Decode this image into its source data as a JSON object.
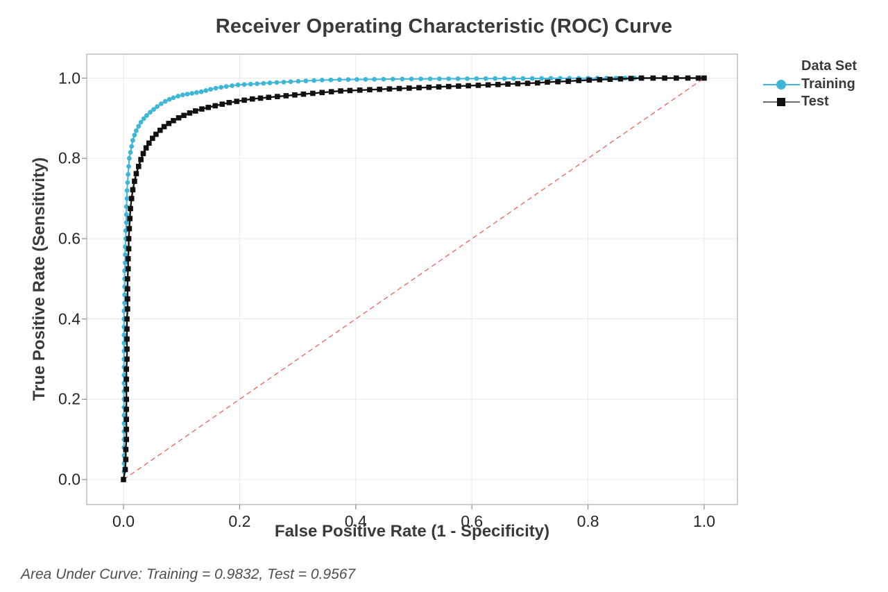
{
  "header": {
    "title": "Receiver Operating Characteristic (ROC) Curve"
  },
  "footer": {
    "text": "Area Under Curve: Training = 0.9832, Test = 0.9567"
  },
  "legend": {
    "title": "Data Set",
    "items": [
      {
        "label": "Training",
        "marker": "circle",
        "marker_color": "#3eb6d8",
        "line_color": "#3eb6d8"
      },
      {
        "label": "Test",
        "marker": "square",
        "marker_color": "#111111",
        "line_color": "#6a6a6a"
      }
    ]
  },
  "colors": {
    "grid": "#e9e9e9",
    "frame": "#bdbdbd",
    "tick": "#8c8c8c",
    "diagonal": "#ef5a52",
    "training": "#3eb6d8",
    "test": "#111111",
    "background": "#ffffff"
  },
  "chart_data": {
    "type": "line",
    "title": "Receiver Operating Characteristic (ROC) Curve",
    "xlabel": "False Positive Rate (1 - Specificity)",
    "ylabel": "True Positive Rate (Sensitivity)",
    "xlim": [
      0,
      1
    ],
    "ylim": [
      0,
      1
    ],
    "grid": true,
    "legend_position": "right",
    "x_ticks": [
      0,
      0.2,
      0.4,
      0.6,
      0.8,
      1.0
    ],
    "x_tick_labels": [
      "0.0",
      "0.2",
      "0.4",
      "0.6",
      "0.8",
      "1.0"
    ],
    "y_ticks": [
      0,
      0.2,
      0.4,
      0.6,
      0.8,
      1.0
    ],
    "y_tick_labels": [
      "0.0",
      "0.2",
      "0.4",
      "0.6",
      "0.8",
      "1.0"
    ],
    "reference_line": {
      "from": [
        0,
        0
      ],
      "to": [
        1,
        1
      ],
      "style": "dashed",
      "color": "#ef5a52"
    },
    "annotations": {
      "area_under_curve": {
        "Training": 0.9832,
        "Test": 0.9567
      }
    },
    "series": [
      {
        "name": "Training",
        "auc": 0.9832,
        "marker": "circle",
        "color": "#3eb6d8",
        "points": [
          [
            0.0,
            0.0
          ],
          [
            0.001,
            0.02
          ],
          [
            0.001,
            0.04
          ],
          [
            0.001,
            0.06
          ],
          [
            0.001,
            0.08
          ],
          [
            0.001,
            0.1
          ],
          [
            0.001,
            0.12
          ],
          [
            0.001,
            0.14
          ],
          [
            0.001,
            0.16
          ],
          [
            0.001,
            0.18
          ],
          [
            0.001,
            0.2
          ],
          [
            0.001,
            0.22
          ],
          [
            0.001,
            0.24
          ],
          [
            0.001,
            0.26
          ],
          [
            0.001,
            0.28
          ],
          [
            0.001,
            0.3
          ],
          [
            0.001,
            0.32
          ],
          [
            0.001,
            0.34
          ],
          [
            0.001,
            0.36
          ],
          [
            0.001,
            0.38
          ],
          [
            0.001,
            0.4
          ],
          [
            0.001,
            0.42
          ],
          [
            0.002,
            0.44
          ],
          [
            0.002,
            0.46
          ],
          [
            0.002,
            0.48
          ],
          [
            0.002,
            0.5
          ],
          [
            0.002,
            0.52
          ],
          [
            0.003,
            0.54
          ],
          [
            0.003,
            0.56
          ],
          [
            0.003,
            0.58
          ],
          [
            0.004,
            0.6
          ],
          [
            0.004,
            0.62
          ],
          [
            0.005,
            0.64
          ],
          [
            0.005,
            0.66
          ],
          [
            0.005,
            0.68
          ],
          [
            0.006,
            0.7
          ],
          [
            0.006,
            0.72
          ],
          [
            0.007,
            0.74
          ],
          [
            0.008,
            0.76
          ],
          [
            0.009,
            0.78
          ],
          [
            0.01,
            0.8
          ],
          [
            0.012,
            0.815
          ],
          [
            0.014,
            0.83
          ],
          [
            0.016,
            0.845
          ],
          [
            0.019,
            0.858
          ],
          [
            0.022,
            0.869
          ],
          [
            0.026,
            0.88
          ],
          [
            0.03,
            0.89
          ],
          [
            0.035,
            0.899
          ],
          [
            0.04,
            0.907
          ],
          [
            0.046,
            0.915
          ],
          [
            0.052,
            0.922
          ],
          [
            0.058,
            0.929
          ],
          [
            0.065,
            0.936
          ],
          [
            0.072,
            0.942
          ],
          [
            0.079,
            0.947
          ],
          [
            0.086,
            0.951
          ],
          [
            0.094,
            0.955
          ],
          [
            0.102,
            0.958
          ],
          [
            0.11,
            0.96
          ],
          [
            0.118,
            0.962
          ],
          [
            0.126,
            0.964
          ],
          [
            0.134,
            0.966
          ],
          [
            0.142,
            0.969
          ],
          [
            0.15,
            0.972
          ],
          [
            0.159,
            0.975
          ],
          [
            0.168,
            0.977
          ],
          [
            0.177,
            0.979
          ],
          [
            0.187,
            0.981
          ],
          [
            0.197,
            0.983
          ],
          [
            0.208,
            0.984
          ],
          [
            0.219,
            0.985
          ],
          [
            0.23,
            0.986
          ],
          [
            0.241,
            0.987
          ],
          [
            0.252,
            0.988
          ],
          [
            0.264,
            0.989
          ],
          [
            0.276,
            0.99
          ],
          [
            0.288,
            0.991
          ],
          [
            0.301,
            0.992
          ],
          [
            0.314,
            0.993
          ],
          [
            0.328,
            0.994
          ],
          [
            0.342,
            0.995
          ],
          [
            0.357,
            0.9955
          ],
          [
            0.372,
            0.996
          ],
          [
            0.387,
            0.9963
          ],
          [
            0.402,
            0.9966
          ],
          [
            0.417,
            0.9968
          ],
          [
            0.432,
            0.997
          ],
          [
            0.448,
            0.9972
          ],
          [
            0.464,
            0.9974
          ],
          [
            0.48,
            0.9976
          ],
          [
            0.496,
            0.9978
          ],
          [
            0.512,
            0.998
          ],
          [
            0.528,
            0.9981
          ],
          [
            0.544,
            0.9982
          ],
          [
            0.56,
            0.9983
          ],
          [
            0.576,
            0.9984
          ],
          [
            0.592,
            0.9985
          ],
          [
            0.608,
            0.9986
          ],
          [
            0.624,
            0.9987
          ],
          [
            0.64,
            0.9988
          ],
          [
            0.656,
            0.9989
          ],
          [
            0.672,
            0.999
          ],
          [
            0.688,
            0.999
          ],
          [
            0.704,
            0.9991
          ],
          [
            0.72,
            0.9992
          ],
          [
            0.736,
            0.9993
          ],
          [
            0.752,
            0.9994
          ],
          [
            0.768,
            0.9995
          ],
          [
            0.784,
            0.9996
          ],
          [
            0.8,
            0.9996
          ],
          [
            0.816,
            0.9997
          ],
          [
            0.832,
            0.9998
          ],
          [
            0.848,
            0.9998
          ],
          [
            0.864,
            0.9999
          ],
          [
            0.88,
            1.0
          ],
          [
            0.89,
            1.0
          ]
        ]
      },
      {
        "name": "Test",
        "auc": 0.9567,
        "marker": "square",
        "color": "#111111",
        "points": [
          [
            0.0,
            0.0
          ],
          [
            0.003,
            0.025
          ],
          [
            0.004,
            0.05
          ],
          [
            0.004,
            0.075
          ],
          [
            0.005,
            0.1
          ],
          [
            0.005,
            0.125
          ],
          [
            0.005,
            0.15
          ],
          [
            0.005,
            0.175
          ],
          [
            0.005,
            0.2
          ],
          [
            0.005,
            0.225
          ],
          [
            0.005,
            0.25
          ],
          [
            0.005,
            0.275
          ],
          [
            0.006,
            0.3
          ],
          [
            0.006,
            0.325
          ],
          [
            0.006,
            0.35
          ],
          [
            0.006,
            0.375
          ],
          [
            0.006,
            0.4
          ],
          [
            0.007,
            0.425
          ],
          [
            0.007,
            0.45
          ],
          [
            0.007,
            0.475
          ],
          [
            0.007,
            0.5
          ],
          [
            0.008,
            0.525
          ],
          [
            0.008,
            0.55
          ],
          [
            0.009,
            0.575
          ],
          [
            0.009,
            0.6
          ],
          [
            0.01,
            0.625
          ],
          [
            0.011,
            0.65
          ],
          [
            0.012,
            0.675
          ],
          [
            0.014,
            0.7
          ],
          [
            0.016,
            0.722
          ],
          [
            0.019,
            0.743
          ],
          [
            0.022,
            0.762
          ],
          [
            0.026,
            0.78
          ],
          [
            0.03,
            0.797
          ],
          [
            0.034,
            0.812
          ],
          [
            0.039,
            0.826
          ],
          [
            0.044,
            0.838
          ],
          [
            0.05,
            0.85
          ],
          [
            0.056,
            0.86
          ],
          [
            0.063,
            0.87
          ],
          [
            0.07,
            0.879
          ],
          [
            0.078,
            0.887
          ],
          [
            0.086,
            0.894
          ],
          [
            0.095,
            0.901
          ],
          [
            0.104,
            0.907
          ],
          [
            0.114,
            0.913
          ],
          [
            0.124,
            0.918
          ],
          [
            0.135,
            0.923
          ],
          [
            0.146,
            0.927
          ],
          [
            0.158,
            0.931
          ],
          [
            0.17,
            0.935
          ],
          [
            0.182,
            0.939
          ],
          [
            0.195,
            0.942
          ],
          [
            0.208,
            0.945
          ],
          [
            0.222,
            0.948
          ],
          [
            0.236,
            0.95
          ],
          [
            0.25,
            0.952
          ],
          [
            0.265,
            0.954
          ],
          [
            0.28,
            0.956
          ],
          [
            0.295,
            0.958
          ],
          [
            0.31,
            0.96
          ],
          [
            0.326,
            0.962
          ],
          [
            0.342,
            0.964
          ],
          [
            0.358,
            0.966
          ],
          [
            0.374,
            0.968
          ],
          [
            0.39,
            0.969
          ],
          [
            0.407,
            0.97
          ],
          [
            0.424,
            0.971
          ],
          [
            0.441,
            0.972
          ],
          [
            0.458,
            0.973
          ],
          [
            0.475,
            0.974
          ],
          [
            0.492,
            0.975
          ],
          [
            0.509,
            0.976
          ],
          [
            0.526,
            0.977
          ],
          [
            0.543,
            0.978
          ],
          [
            0.56,
            0.979
          ],
          [
            0.577,
            0.98
          ],
          [
            0.594,
            0.981
          ],
          [
            0.611,
            0.982
          ],
          [
            0.628,
            0.983
          ],
          [
            0.645,
            0.984
          ],
          [
            0.662,
            0.985
          ],
          [
            0.679,
            0.986
          ],
          [
            0.696,
            0.987
          ],
          [
            0.713,
            0.988
          ],
          [
            0.73,
            0.99
          ],
          [
            0.748,
            0.991
          ],
          [
            0.766,
            0.992
          ],
          [
            0.784,
            0.994
          ],
          [
            0.802,
            0.995
          ],
          [
            0.82,
            0.996
          ],
          [
            0.838,
            0.997
          ],
          [
            0.856,
            0.998
          ],
          [
            0.874,
            0.999
          ],
          [
            0.892,
            1.0
          ],
          [
            0.912,
            1.0
          ],
          [
            0.932,
            1.0
          ],
          [
            0.952,
            1.0
          ],
          [
            0.972,
            1.0
          ],
          [
            0.99,
            1.0
          ],
          [
            1.0,
            1.0
          ]
        ]
      }
    ]
  }
}
